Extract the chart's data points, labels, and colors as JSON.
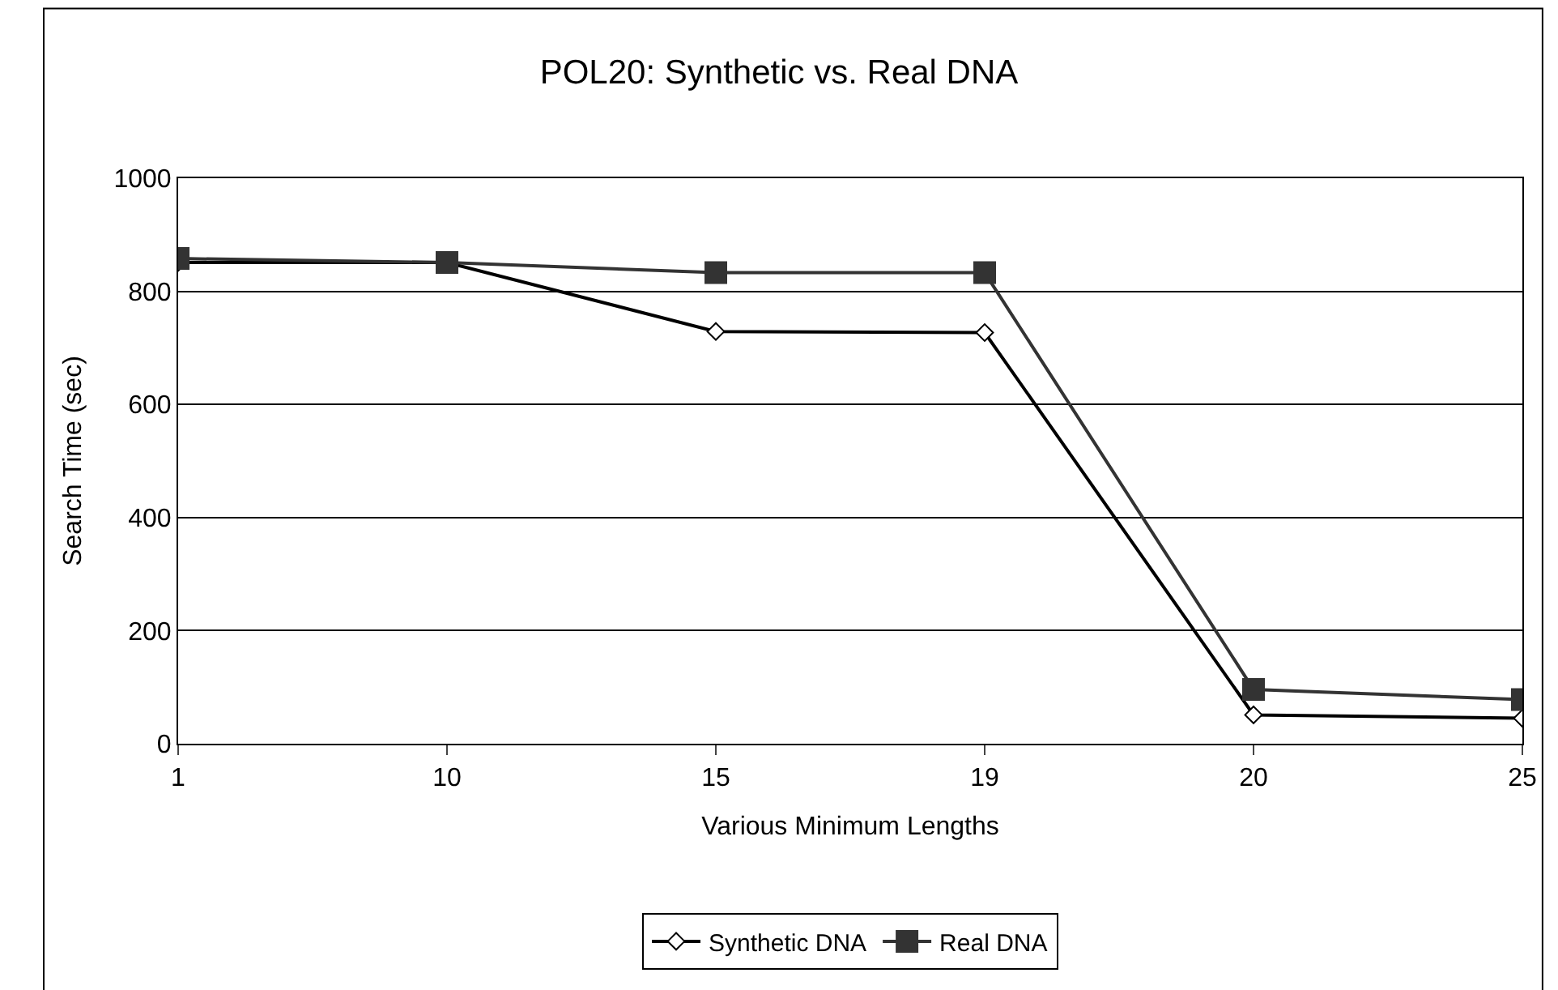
{
  "chart_data": {
    "type": "line",
    "title": "POL20: Synthetic vs. Real DNA",
    "xlabel": "Various Minimum Lengths",
    "ylabel": "Search Time (sec)",
    "categories": [
      "1",
      "10",
      "15",
      "19",
      "20",
      "25"
    ],
    "series": [
      {
        "name": "Synthetic DNA",
        "color": "#000000",
        "marker": "diamond",
        "values": [
          851,
          851,
          729,
          727,
          51,
          45
        ]
      },
      {
        "name": "Real DNA",
        "color": "#333333",
        "marker": "square",
        "values": [
          858,
          851,
          833,
          833,
          96,
          78
        ]
      }
    ],
    "ylim": [
      0,
      1000
    ],
    "yticks": [
      0,
      200,
      400,
      600,
      800,
      1000
    ],
    "grid": "y",
    "legend": "bottom",
    "line_style": "solid"
  }
}
